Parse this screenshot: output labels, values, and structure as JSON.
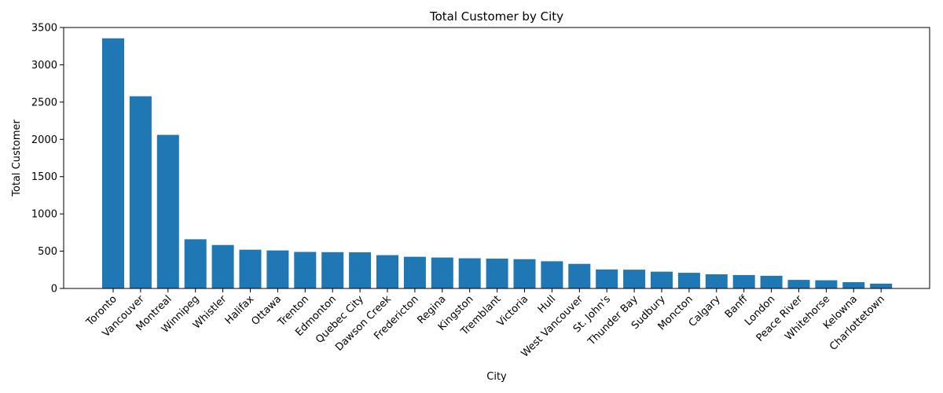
{
  "chart_data": {
    "type": "bar",
    "title": "Total Customer by City",
    "xlabel": "City",
    "ylabel": "Total Customer",
    "ylim": [
      0,
      3500
    ],
    "yticks": [
      0,
      500,
      1000,
      1500,
      2000,
      2500,
      3000,
      3500
    ],
    "bar_color": "#1f77b4",
    "grid": false,
    "categories": [
      "Toronto",
      "Vancouver",
      "Montreal",
      "Winnipeg",
      "Whistler",
      "Halifax",
      "Ottawa",
      "Trenton",
      "Edmonton",
      "Quebec City",
      "Dawson Creek",
      "Fredericton",
      "Regina",
      "Kingston",
      "Tremblant",
      "Victoria",
      "Hull",
      "West Vancouver",
      "St. John's",
      "Thunder Bay",
      "Sudbury",
      "Moncton",
      "Calgary",
      "Banff",
      "London",
      "Peace River",
      "Whitehorse",
      "Kelowna",
      "Charlottetown"
    ],
    "values": [
      3355,
      2578,
      2060,
      660,
      583,
      520,
      510,
      490,
      487,
      485,
      447,
      425,
      415,
      405,
      400,
      393,
      365,
      330,
      255,
      252,
      225,
      210,
      190,
      180,
      170,
      115,
      110,
      85,
      65
    ]
  }
}
